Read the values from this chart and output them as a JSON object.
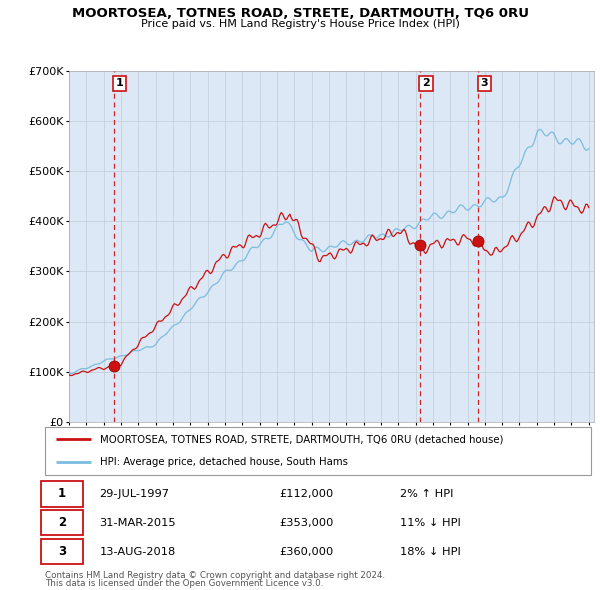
{
  "title": "MOORTOSEA, TOTNES ROAD, STRETE, DARTMOUTH, TQ6 0RU",
  "subtitle": "Price paid vs. HM Land Registry's House Price Index (HPI)",
  "legend_line1": "MOORTOSEA, TOTNES ROAD, STRETE, DARTMOUTH, TQ6 0RU (detached house)",
  "legend_line2": "HPI: Average price, detached house, South Hams",
  "footer1": "Contains HM Land Registry data © Crown copyright and database right 2024.",
  "footer2": "This data is licensed under the Open Government Licence v3.0.",
  "sales": [
    {
      "num": 1,
      "date": "29-JUL-1997",
      "price": "£112,000",
      "hpi": "2% ↑ HPI",
      "year": 1997.58
    },
    {
      "num": 2,
      "date": "31-MAR-2015",
      "price": "£353,000",
      "hpi": "11% ↓ HPI",
      "year": 2015.25
    },
    {
      "num": 3,
      "date": "13-AUG-2018",
      "price": "£360,000",
      "hpi": "18% ↓ HPI",
      "year": 2018.62
    }
  ],
  "sale_prices": [
    112000,
    353000,
    360000
  ],
  "hpi_color": "#7bbce0",
  "price_color": "#cc1111",
  "bg_color": "#dce8f5",
  "grid_color": "#c0ccd8",
  "vline_color": "#cc1111",
  "ylim": [
    0,
    700000
  ],
  "xlim": [
    1995.0,
    2025.3
  ]
}
